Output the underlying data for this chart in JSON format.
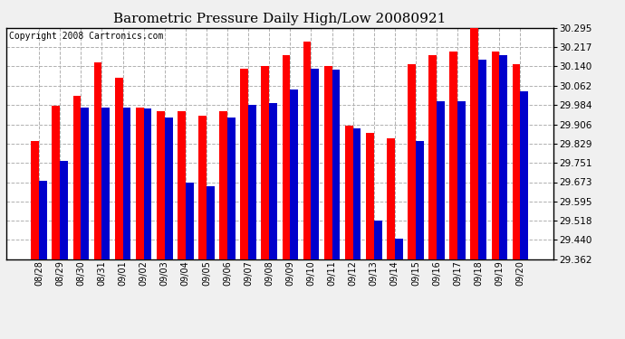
{
  "title": "Barometric Pressure Daily High/Low 20080921",
  "copyright": "Copyright 2008 Cartronics.com",
  "dates": [
    "08/28",
    "08/29",
    "08/30",
    "08/31",
    "09/01",
    "09/02",
    "09/03",
    "09/04",
    "09/05",
    "09/06",
    "09/07",
    "09/08",
    "09/09",
    "09/10",
    "09/11",
    "09/12",
    "09/13",
    "09/14",
    "09/15",
    "09/16",
    "09/17",
    "09/18",
    "09/19",
    "09/20"
  ],
  "highs": [
    29.84,
    29.98,
    30.02,
    30.155,
    30.095,
    29.975,
    29.96,
    29.96,
    29.94,
    29.96,
    30.13,
    30.14,
    30.185,
    30.24,
    30.14,
    29.9,
    29.87,
    29.85,
    30.15,
    30.185,
    30.2,
    30.315,
    30.2,
    30.15
  ],
  "lows": [
    29.68,
    29.758,
    29.975,
    29.975,
    29.975,
    29.97,
    29.935,
    29.67,
    29.658,
    29.935,
    29.985,
    29.99,
    30.045,
    30.13,
    30.128,
    29.888,
    29.52,
    29.445,
    29.84,
    29.998,
    29.998,
    30.165,
    30.185,
    30.04
  ],
  "ylim_min": 29.362,
  "ylim_max": 30.295,
  "yticks": [
    29.362,
    29.44,
    29.518,
    29.595,
    29.673,
    29.751,
    29.829,
    29.906,
    29.984,
    30.062,
    30.14,
    30.217,
    30.295
  ],
  "high_color": "#ff0000",
  "low_color": "#0000cc",
  "bg_color": "#f0f0f0",
  "plot_bg_color": "#ffffff",
  "title_fontsize": 11,
  "copyright_fontsize": 7,
  "bar_width": 0.38
}
